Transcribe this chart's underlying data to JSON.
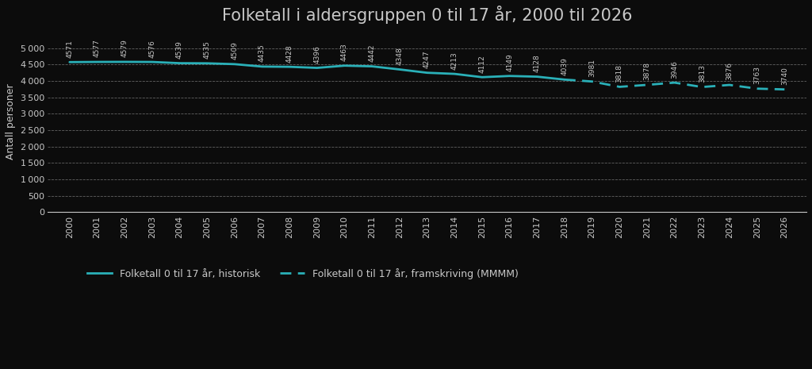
{
  "title": "Folketall i aldersgruppen 0 til 17 år, 2000 til 2026",
  "ylabel": "Antall personer",
  "historical_years": [
    2000,
    2001,
    2002,
    2003,
    2004,
    2005,
    2006,
    2007,
    2008,
    2009,
    2010,
    2011,
    2012,
    2013,
    2014,
    2015,
    2016,
    2017,
    2018
  ],
  "historical_values": [
    4571,
    4577,
    4579,
    4576,
    4539,
    4535,
    4509,
    4435,
    4428,
    4396,
    4463,
    4442,
    4348,
    4247,
    4213,
    4112,
    4149,
    4128,
    4039
  ],
  "projection_years": [
    2018,
    2019,
    2020,
    2021,
    2022,
    2023,
    2024,
    2025,
    2026
  ],
  "projection_values": [
    4039,
    3981,
    3818,
    3878,
    3946,
    3813,
    3876,
    3763,
    3740
  ],
  "line_color": "#2ab0b8",
  "dash_color": "#2ab0b8",
  "background_color": "#0c0c0c",
  "plot_bg_color": "#0c0c0c",
  "text_color": "#c8c8c8",
  "grid_color": "#888888",
  "ylim": [
    0,
    5500
  ],
  "yticks": [
    0,
    500,
    1000,
    1500,
    2000,
    2500,
    3000,
    3500,
    4000,
    4500,
    5000
  ],
  "legend_hist": "Folketall 0 til 17 år, historisk",
  "legend_proj": "Folketall 0 til 17 år, framskriving (MMMM)",
  "title_fontsize": 15,
  "label_fontsize": 9,
  "tick_fontsize": 8,
  "annotation_fontsize": 6.5
}
